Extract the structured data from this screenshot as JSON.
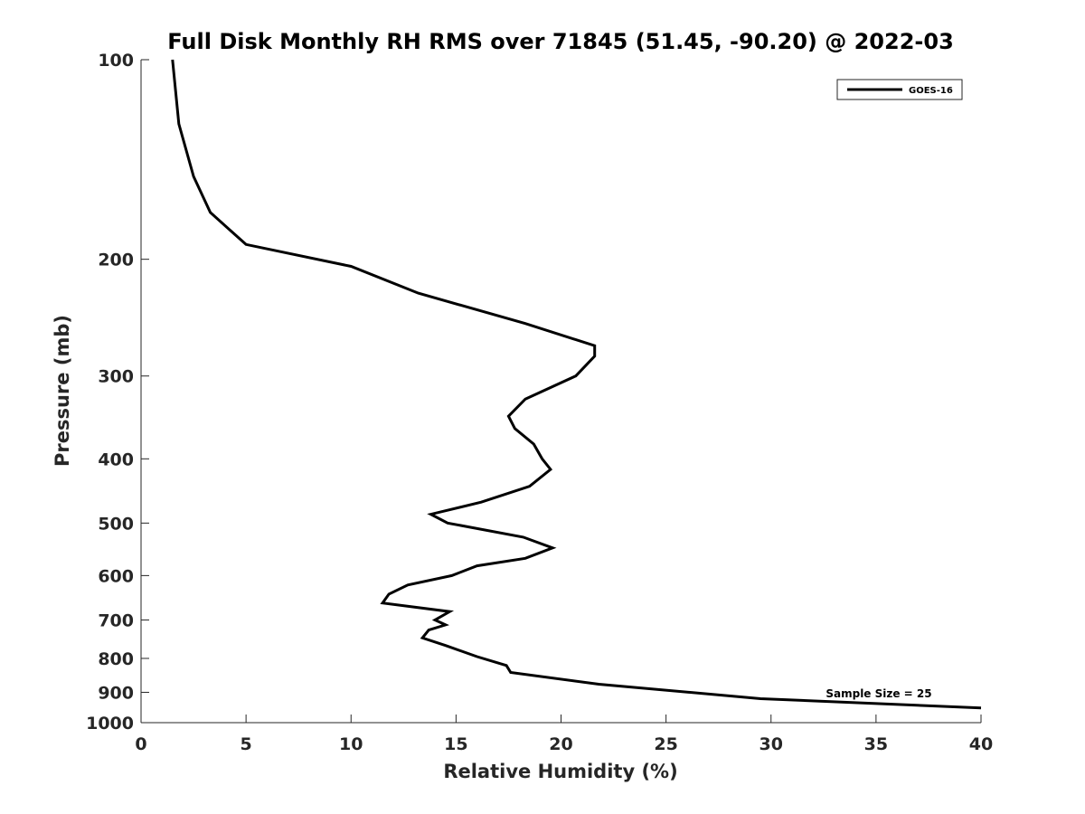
{
  "chart_data": {
    "type": "line",
    "title": "Full Disk Monthly RH RMS over 71845 (51.45, -90.20) @ 2022-03",
    "xlabel": "Relative Humidity (%)",
    "ylabel": "Pressure (mb)",
    "xlim": [
      0,
      40
    ],
    "ylim": [
      100,
      1000
    ],
    "y_scale": "log",
    "y_reversed": true,
    "x_ticks": [
      0,
      5,
      10,
      15,
      20,
      25,
      30,
      35,
      40
    ],
    "y_ticks": [
      100,
      200,
      300,
      400,
      500,
      600,
      700,
      800,
      900,
      1000
    ],
    "grid": false,
    "legend": {
      "placement": "top-right",
      "entries": [
        "GOES-16"
      ]
    },
    "annotations": [
      {
        "text": "Sample Size = 25"
      }
    ],
    "series": [
      {
        "name": "GOES-16",
        "color": "#000000",
        "points": [
          [
            1.5,
            100
          ],
          [
            1.8,
            125
          ],
          [
            2.5,
            150
          ],
          [
            3.3,
            170
          ],
          [
            5.0,
            190
          ],
          [
            10.0,
            205
          ],
          [
            13.2,
            225
          ],
          [
            18.3,
            250
          ],
          [
            21.6,
            270
          ],
          [
            21.6,
            280
          ],
          [
            20.7,
            300
          ],
          [
            18.3,
            325
          ],
          [
            17.5,
            345
          ],
          [
            17.8,
            360
          ],
          [
            18.7,
            380
          ],
          [
            19.1,
            400
          ],
          [
            19.5,
            415
          ],
          [
            18.5,
            440
          ],
          [
            16.2,
            465
          ],
          [
            13.8,
            485
          ],
          [
            14.6,
            500
          ],
          [
            18.2,
            525
          ],
          [
            19.6,
            545
          ],
          [
            18.3,
            565
          ],
          [
            16.0,
            580
          ],
          [
            14.8,
            600
          ],
          [
            12.7,
            620
          ],
          [
            11.8,
            640
          ],
          [
            11.5,
            660
          ],
          [
            14.7,
            680
          ],
          [
            14.0,
            700
          ],
          [
            14.5,
            712
          ],
          [
            13.7,
            725
          ],
          [
            13.4,
            745
          ],
          [
            14.5,
            765
          ],
          [
            16.0,
            795
          ],
          [
            17.4,
            820
          ],
          [
            17.6,
            840
          ],
          [
            21.8,
            875
          ],
          [
            29.5,
            920
          ],
          [
            40.0,
            950
          ]
        ]
      }
    ]
  }
}
